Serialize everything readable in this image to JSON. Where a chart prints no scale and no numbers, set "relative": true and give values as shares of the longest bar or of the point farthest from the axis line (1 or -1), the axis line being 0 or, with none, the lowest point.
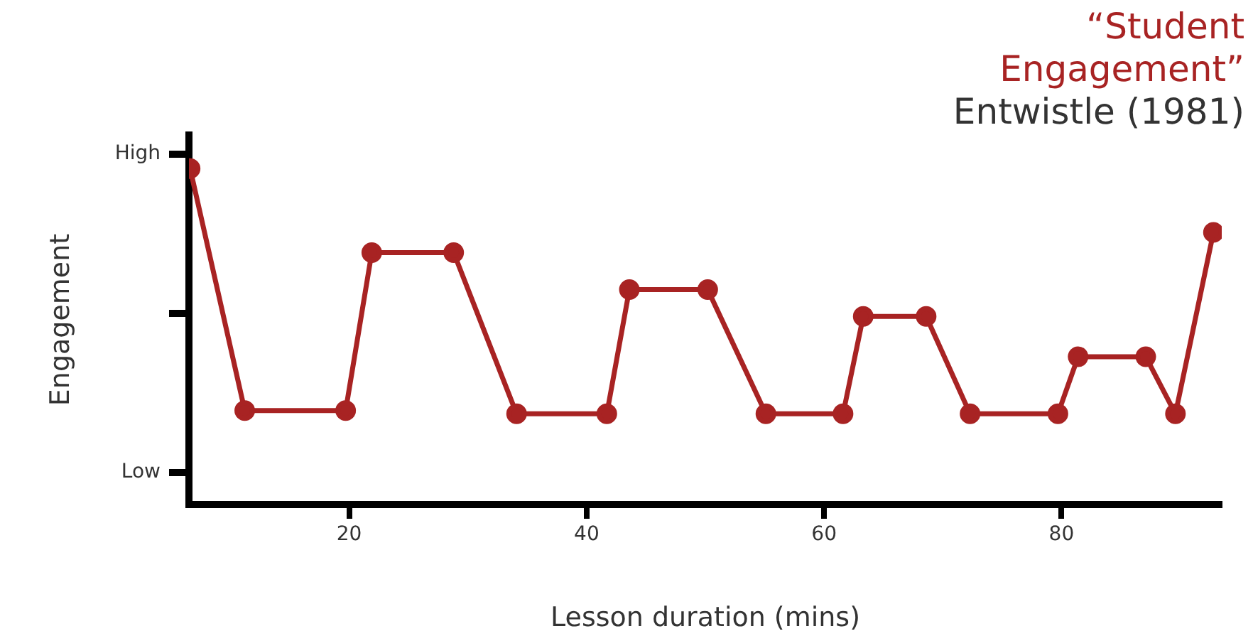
{
  "chart_data": {
    "type": "line",
    "title": "“Student Engagement”",
    "subtitle": "Entwistle (1981)",
    "xlabel": "Lesson duration (mins)",
    "ylabel": "Engagement",
    "relative": true,
    "x": [
      6.6,
      11.2,
      19.7,
      21.9,
      28.8,
      34.1,
      41.7,
      43.6,
      50.2,
      55.1,
      61.6,
      63.3,
      68.6,
      72.3,
      79.7,
      81.4,
      87.1,
      89.6,
      92.8
    ],
    "series": [
      {
        "color": "#a82323",
        "values": [
          1,
          0.28,
          0.28,
          0.75,
          0.75,
          0.27,
          0.27,
          0.64,
          0.64,
          0.27,
          0.27,
          0.56,
          0.56,
          0.27,
          0.27,
          0.44,
          0.44,
          0.27,
          0.81
        ]
      }
    ],
    "xlim": [
      6.5,
      93.5
    ],
    "xticks": [
      20,
      40,
      60,
      80
    ],
    "annotations": [
      "High",
      "Low"
    ],
    "grid": false,
    "legend": false,
    "marker": "circle",
    "line_style": "solid"
  }
}
